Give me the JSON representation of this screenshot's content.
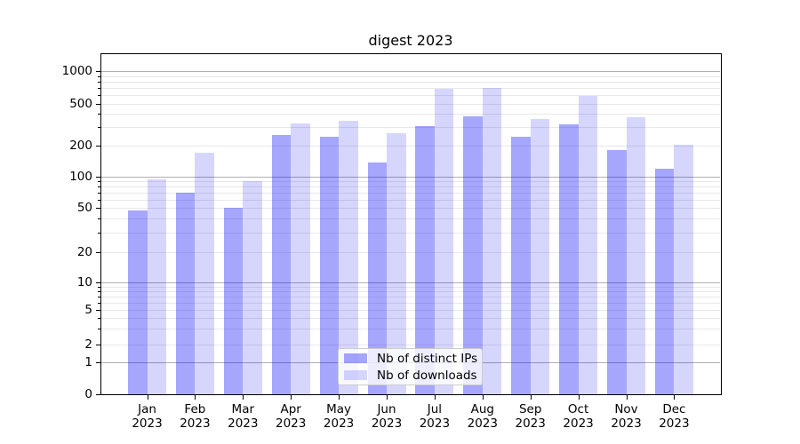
{
  "chart_data": {
    "type": "bar",
    "title": "digest 2023",
    "categories": [
      "Jan",
      "Feb",
      "Mar",
      "Apr",
      "May",
      "Jun",
      "Jul",
      "Aug",
      "Sep",
      "Oct",
      "Nov",
      "Dec"
    ],
    "x_tick_year": "2023",
    "series": [
      {
        "name": "Nb of distinct IPs",
        "color": "rgba(0,0,245,0.35)",
        "values": [
          47,
          70,
          50,
          255,
          245,
          138,
          305,
          380,
          245,
          320,
          182,
          120
        ]
      },
      {
        "name": "Nb of downloads",
        "color": "rgba(0,0,245,0.16)",
        "values": [
          94,
          170,
          90,
          325,
          345,
          265,
          690,
          705,
          360,
          593,
          372,
          205
        ]
      }
    ],
    "y_axis": {
      "scale": "log-like (symlog)",
      "tick_labels": [
        "0",
        "1",
        "2",
        "5",
        "10",
        "20",
        "50",
        "100",
        "200",
        "500",
        "1000"
      ],
      "tick_values": [
        0,
        1,
        2,
        5,
        10,
        20,
        50,
        100,
        200,
        500,
        1000
      ],
      "minor_grid_values": [
        3,
        4,
        6,
        7,
        8,
        9,
        30,
        40,
        60,
        70,
        80,
        90,
        300,
        400,
        600,
        700,
        800,
        900
      ],
      "major_grid_values": [
        1,
        10,
        100,
        1000
      ],
      "minor_labeled_values": [
        2,
        5,
        20,
        50,
        200,
        500
      ],
      "ylim": [
        0,
        1470
      ]
    },
    "legend": {
      "position": "lower center",
      "entries": [
        "Nb of distinct IPs",
        "Nb of downloads"
      ]
    },
    "grid": true
  },
  "colors": {
    "major_grid": "#b0b0b0",
    "minor_grid": "#e8e8e8",
    "spine": "#000000",
    "text": "#000000",
    "legend_border": "#cccccc",
    "legend_background": "rgba(255,255,255,0.8)"
  }
}
